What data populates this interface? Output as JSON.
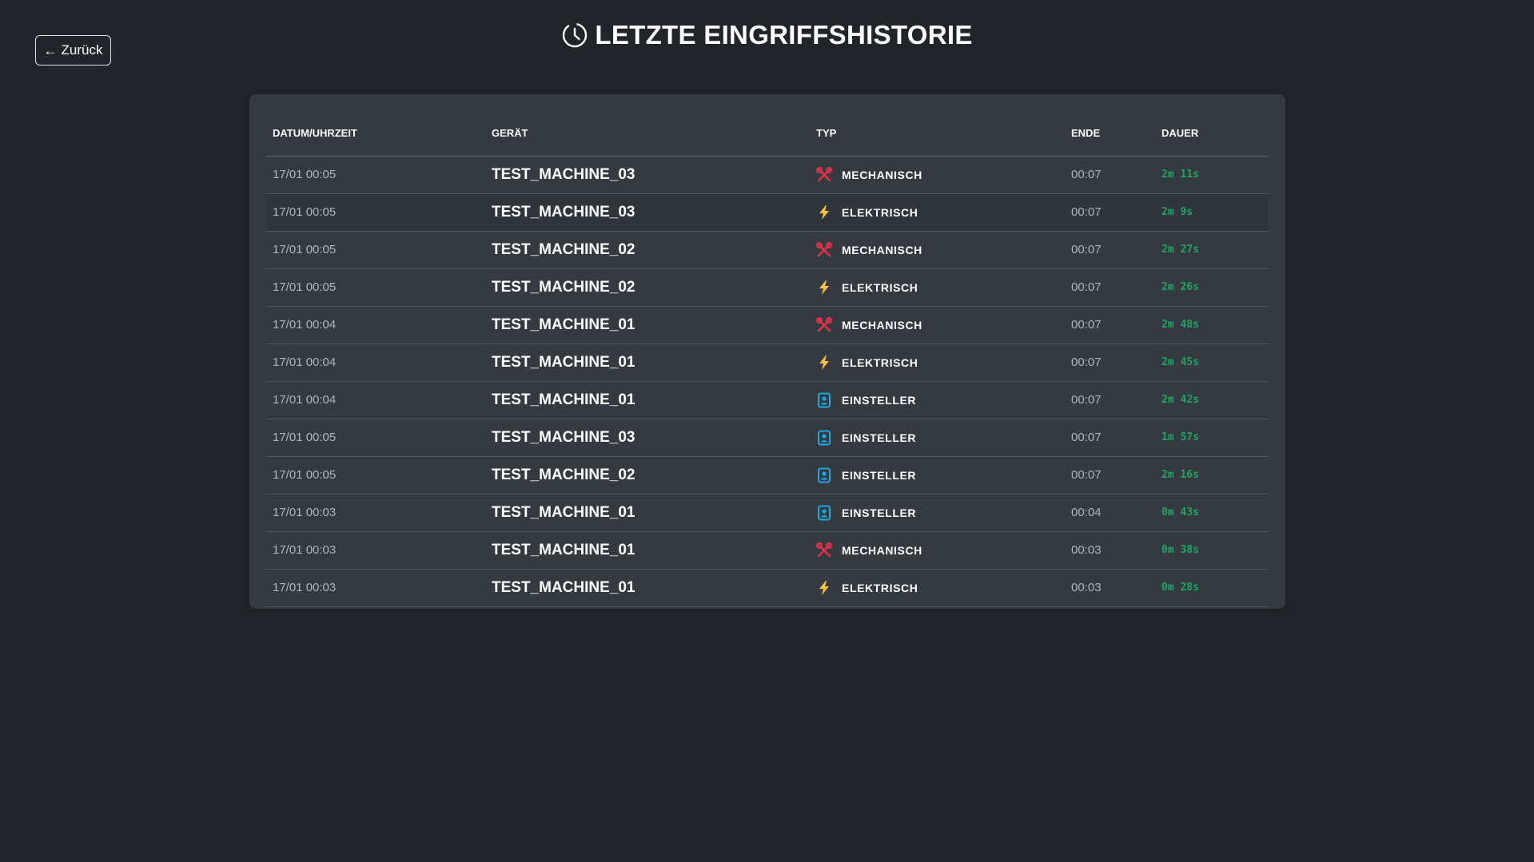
{
  "back_button": {
    "label": "Zurück"
  },
  "page": {
    "title": "LETZTE EINGRIFFSHISTORIE"
  },
  "colors": {
    "mechanisch": "#e0324b",
    "elektrisch": "#f5c242",
    "einsteller": "#1ea7e1",
    "duration": "#20a464"
  },
  "table": {
    "headers": {
      "date": "DATUM/UHRZEIT",
      "device": "GERÄT",
      "type": "TYP",
      "end": "ENDE",
      "duration": "DAUER"
    },
    "rows": [
      {
        "date": "17/01 00:05",
        "device": "TEST_MACHINE_03",
        "type": "MECHANISCH",
        "icon": "tools-icon",
        "end": "00:07",
        "duration": "2m 11s"
      },
      {
        "date": "17/01 00:05",
        "device": "TEST_MACHINE_03",
        "type": "ELEKTRISCH",
        "icon": "lightning-icon",
        "end": "00:07",
        "duration": "2m 9s"
      },
      {
        "date": "17/01 00:05",
        "device": "TEST_MACHINE_02",
        "type": "MECHANISCH",
        "icon": "tools-icon",
        "end": "00:07",
        "duration": "2m 27s"
      },
      {
        "date": "17/01 00:05",
        "device": "TEST_MACHINE_02",
        "type": "ELEKTRISCH",
        "icon": "lightning-icon",
        "end": "00:07",
        "duration": "2m 26s"
      },
      {
        "date": "17/01 00:04",
        "device": "TEST_MACHINE_01",
        "type": "MECHANISCH",
        "icon": "tools-icon",
        "end": "00:07",
        "duration": "2m 48s"
      },
      {
        "date": "17/01 00:04",
        "device": "TEST_MACHINE_01",
        "type": "ELEKTRISCH",
        "icon": "lightning-icon",
        "end": "00:07",
        "duration": "2m 45s"
      },
      {
        "date": "17/01 00:04",
        "device": "TEST_MACHINE_01",
        "type": "EINSTELLER",
        "icon": "badge-icon",
        "end": "00:07",
        "duration": "2m 42s"
      },
      {
        "date": "17/01 00:05",
        "device": "TEST_MACHINE_03",
        "type": "EINSTELLER",
        "icon": "badge-icon",
        "end": "00:07",
        "duration": "1m 57s"
      },
      {
        "date": "17/01 00:05",
        "device": "TEST_MACHINE_02",
        "type": "EINSTELLER",
        "icon": "badge-icon",
        "end": "00:07",
        "duration": "2m 16s"
      },
      {
        "date": "17/01 00:03",
        "device": "TEST_MACHINE_01",
        "type": "EINSTELLER",
        "icon": "badge-icon",
        "end": "00:04",
        "duration": "0m 43s"
      },
      {
        "date": "17/01 00:03",
        "device": "TEST_MACHINE_01",
        "type": "MECHANISCH",
        "icon": "tools-icon",
        "end": "00:03",
        "duration": "0m 38s"
      },
      {
        "date": "17/01 00:03",
        "device": "TEST_MACHINE_01",
        "type": "ELEKTRISCH",
        "icon": "lightning-icon",
        "end": "00:03",
        "duration": "0m 28s"
      }
    ]
  }
}
